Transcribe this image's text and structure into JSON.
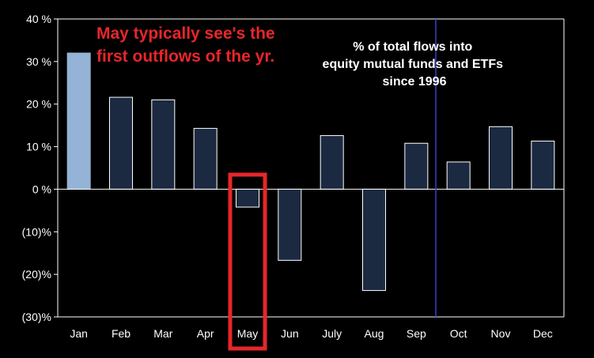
{
  "chart_data": {
    "type": "bar",
    "categories": [
      "Jan",
      "Feb",
      "Mar",
      "Apr",
      "May",
      "Jun",
      "July",
      "Aug",
      "Sep",
      "Oct",
      "Nov",
      "Dec"
    ],
    "values": [
      32,
      21.6,
      21,
      14.3,
      -4.2,
      -16.7,
      12.6,
      -23.8,
      10.8,
      6.4,
      14.7,
      11.3
    ],
    "ylim": [
      -30,
      40
    ],
    "yticks": [
      40,
      30,
      20,
      10,
      0,
      -10,
      -20,
      -30
    ],
    "ytick_labels": [
      "40 %",
      "30 %",
      "20 %",
      "10 %",
      "0 %",
      "(10)%",
      "(20)%",
      "(30)%"
    ],
    "grid": false,
    "highlight_category": "May",
    "divider_after_category": "Sep",
    "colors": {
      "background": "#000000",
      "bar_fill": "#1b2a41",
      "bar_stroke": "#ffffff",
      "first_bar_fill": "#95b3d7",
      "highlight_box": "#e8262a",
      "divider": "#3a3acc",
      "axis": "#ffffff"
    },
    "annotations": {
      "red_note": [
        "May typically see's the",
        "first outflows of the yr."
      ],
      "white_note": [
        "% of total flows into",
        "equity mutual funds and ETFs",
        "since 1996"
      ]
    }
  }
}
